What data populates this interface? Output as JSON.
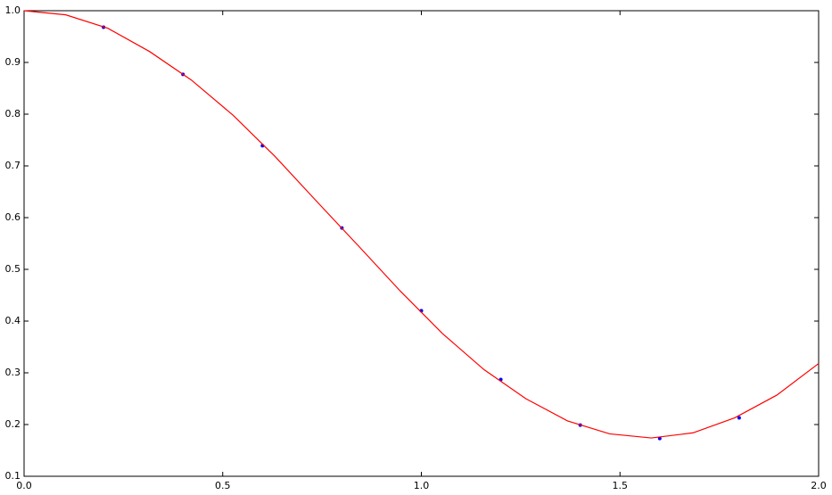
{
  "chart_data": {
    "type": "line",
    "xlim": [
      0,
      2
    ],
    "ylim": [
      0.1,
      1.0
    ],
    "xticks": [
      {
        "value": 0,
        "label": "0.0"
      },
      0.5,
      {
        "value": 1,
        "label": "1.0"
      },
      1.5,
      {
        "value": 2,
        "label": "2.0"
      }
    ],
    "yticks": [
      0.1,
      0.2,
      0.3,
      0.4,
      0.5,
      0.6,
      0.7,
      0.8,
      0.9,
      {
        "value": 1,
        "label": "1.0"
      }
    ],
    "grid": false,
    "series": [
      {
        "color": "#0000ff",
        "marker": "dot",
        "x": [
          0.2,
          0.4,
          0.6,
          0.8,
          1.0,
          1.2,
          1.4,
          1.6,
          1.8
        ],
        "values": [
          0.968,
          0.877,
          0.739,
          0.58,
          0.42,
          0.287,
          0.199,
          0.173,
          0.213
        ]
      },
      {
        "color": "#ff0000",
        "x": [
          0,
          0.105,
          0.211,
          0.316,
          0.421,
          0.526,
          0.632,
          0.737,
          0.842,
          0.947,
          1.053,
          1.158,
          1.263,
          1.368,
          1.474,
          1.579,
          1.684,
          1.789,
          1.895,
          2.0
        ],
        "values": [
          1.0,
          0.992,
          0.966,
          0.921,
          0.866,
          0.798,
          0.718,
          0.631,
          0.545,
          0.458,
          0.376,
          0.306,
          0.25,
          0.207,
          0.182,
          0.174,
          0.184,
          0.213,
          0.257,
          0.318
        ]
      }
    ]
  }
}
